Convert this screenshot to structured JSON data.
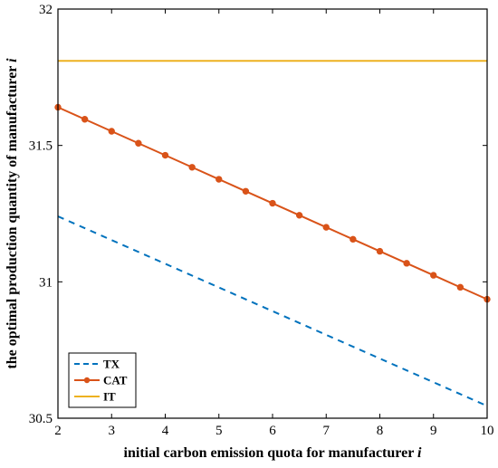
{
  "chart_data": {
    "type": "line",
    "xlabel": "initial carbon emission quota for manufacturer",
    "xlabel_var": "i",
    "ylabel": "the optimal production quantity of manufacturer",
    "ylabel_var": "i",
    "xlim": [
      2,
      10
    ],
    "ylim": [
      30.5,
      32
    ],
    "xticks": [
      2,
      3,
      4,
      5,
      6,
      7,
      8,
      9,
      10
    ],
    "yticks": [
      30.5,
      31,
      31.5,
      32
    ],
    "ytick_labels": [
      "30.5",
      "31",
      "31.5",
      "32"
    ],
    "grid": false,
    "legend_position": "bottom-left",
    "series": [
      {
        "name": "TX",
        "style": "dashed",
        "color": "#0072BD",
        "x": [
          2,
          10
        ],
        "y": [
          31.24,
          30.545
        ]
      },
      {
        "name": "CAT",
        "style": "solid-markers",
        "color": "#D95319",
        "x": [
          2,
          2.5,
          3,
          3.5,
          4,
          4.5,
          5,
          5.5,
          6,
          6.5,
          7,
          7.5,
          8,
          8.5,
          9,
          9.5,
          10
        ],
        "y": [
          31.64,
          31.596,
          31.552,
          31.508,
          31.464,
          31.42,
          31.376,
          31.332,
          31.288,
          31.244,
          31.2,
          31.156,
          31.112,
          31.068,
          31.024,
          30.98,
          30.936
        ]
      },
      {
        "name": "IT",
        "style": "solid",
        "color": "#EDB120",
        "x": [
          2,
          10
        ],
        "y": [
          31.81,
          31.81
        ]
      }
    ]
  }
}
